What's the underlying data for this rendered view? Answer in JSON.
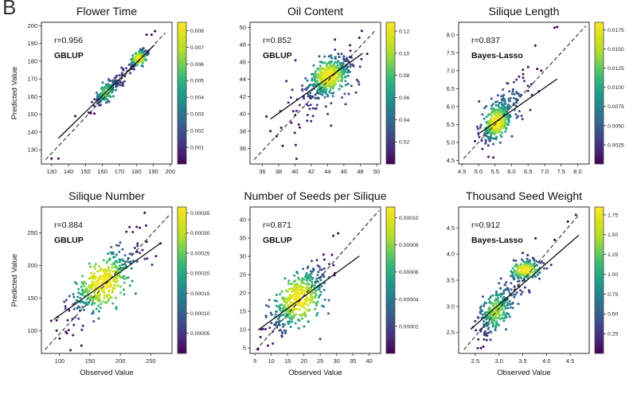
{
  "panel_label": "B",
  "colormap": {
    "name": "viridis",
    "stops": [
      "#440154",
      "#482878",
      "#3e4a89",
      "#31688e",
      "#26828e",
      "#1f9e89",
      "#35b779",
      "#6ece58",
      "#b5de2b",
      "#d8e219",
      "#fde725"
    ]
  },
  "axis_text": {
    "ylabel": "Predicted Value",
    "xlabel": "Observed Value"
  },
  "chart_data": [
    {
      "type": "scatter",
      "title": "Flower Time",
      "annotation": {
        "r": "r=0.956",
        "method": "GBLUP"
      },
      "xlabel": "",
      "ylabel": "Predicted Value",
      "xlim": [
        124,
        201
      ],
      "ylim": [
        122,
        202
      ],
      "xticks": [
        130,
        140,
        150,
        160,
        170,
        180,
        190,
        200
      ],
      "xtick_labels": [
        "130",
        "140",
        "150",
        "160",
        "170",
        "180",
        "190",
        "200"
      ],
      "yticks": [
        130,
        140,
        150,
        160,
        170,
        180,
        190,
        200
      ],
      "ytick_labels": [
        "130",
        "140",
        "150",
        "160",
        "170",
        "180",
        "190",
        "200"
      ],
      "colorbar": {
        "vmin": 0,
        "vmax": 0.0085,
        "tick_values": [
          0.001,
          0.002,
          0.003,
          0.004,
          0.005,
          0.006,
          0.007,
          0.008
        ],
        "tick_labels": [
          "0.001",
          "0.002",
          "0.003",
          "0.004",
          "0.005",
          "0.006",
          "0.007",
          "0.008"
        ]
      },
      "identity_line": [
        126.5,
        124.5,
        197,
        196
      ],
      "fit_line": [
        134,
        136.5,
        190.5,
        189
      ],
      "point_clusters": [
        {
          "cx": 162,
          "cy": 162.5,
          "sx": 3.4,
          "sy": 3.6,
          "rho": 0.72,
          "n": 150
        },
        {
          "cx": 181.5,
          "cy": 181.5,
          "sx": 2.6,
          "sy": 2.4,
          "rho": 0.65,
          "n": 150
        },
        {
          "cx": 171,
          "cy": 171,
          "sx": 5.5,
          "sy": 5.5,
          "rho": 0.85,
          "n": 30
        }
      ],
      "outliers": [
        [
          130,
          125
        ],
        [
          134,
          125
        ],
        [
          144,
          149
        ],
        [
          152,
          151
        ],
        [
          186,
          195
        ],
        [
          189,
          195
        ],
        [
          191,
          197
        ],
        [
          174,
          176
        ],
        [
          172,
          167
        ],
        [
          168,
          171
        ]
      ]
    },
    {
      "type": "scatter",
      "title": "Oil Content",
      "annotation": {
        "r": "r=0.852",
        "method": "GBLUP"
      },
      "xlabel": "",
      "ylabel": "",
      "xlim": [
        34.5,
        50.5
      ],
      "ylim": [
        34.2,
        50.6
      ],
      "xticks": [
        36,
        38,
        40,
        42,
        44,
        46,
        48,
        50
      ],
      "xtick_labels": [
        "36",
        "38",
        "40",
        "42",
        "44",
        "46",
        "48",
        "50"
      ],
      "yticks": [
        36,
        38,
        40,
        42,
        44,
        46,
        48,
        50
      ],
      "ytick_labels": [
        "36",
        "38",
        "40",
        "42",
        "44",
        "46",
        "48",
        "50"
      ],
      "colorbar": {
        "vmin": 0,
        "vmax": 0.128,
        "tick_values": [
          0.02,
          0.04,
          0.06,
          0.08,
          0.1,
          0.12
        ],
        "tick_labels": [
          "0.02",
          "0.04",
          "0.06",
          "0.08",
          "0.10",
          "0.12"
        ]
      },
      "identity_line": [
        35,
        34.7,
        49.8,
        49.6
      ],
      "fit_line": [
        37,
        39.4,
        48.3,
        47.0
      ],
      "point_clusters": [
        {
          "cx": 44.2,
          "cy": 44.4,
          "sx": 1.25,
          "sy": 1.1,
          "rho": 0.55,
          "n": 400
        },
        {
          "cx": 43.2,
          "cy": 42.8,
          "sx": 2.4,
          "sy": 2.2,
          "rho": 0.55,
          "n": 90
        }
      ],
      "outliers": [
        [
          37,
          38
        ],
        [
          38.5,
          36.3
        ],
        [
          40.2,
          34.8
        ],
        [
          40.1,
          36.4
        ],
        [
          41.5,
          39.2
        ],
        [
          48.2,
          49.6
        ],
        [
          47.9,
          48.8
        ],
        [
          44.9,
          48.6
        ],
        [
          46.8,
          47.3
        ],
        [
          39.8,
          40.3
        ]
      ]
    },
    {
      "type": "scatter",
      "title": "Silique Length",
      "annotation": {
        "r": "r=0.837",
        "method": "Bayes-Lasso"
      },
      "xlabel": "",
      "ylabel": "",
      "xlim": [
        4.4,
        8.35
      ],
      "ylim": [
        4.4,
        8.35
      ],
      "xticks": [
        4.5,
        5.0,
        5.5,
        6.0,
        6.5,
        7.0,
        7.5,
        8.0
      ],
      "xtick_labels": [
        "4.5",
        "5.0",
        "5.5",
        "6.0",
        "6.5",
        "7.0",
        "7.5",
        "8.0"
      ],
      "yticks": [
        4.5,
        5.0,
        5.5,
        6.0,
        6.5,
        7.0,
        7.5,
        8.0
      ],
      "ytick_labels": [
        "4.5",
        "5.0",
        "5.5",
        "6.0",
        "6.5",
        "7.0",
        "7.5",
        "8.0"
      ],
      "colorbar": {
        "vmin": 0,
        "vmax": 0.0185,
        "tick_values": [
          0.0025,
          0.005,
          0.0075,
          0.01,
          0.0125,
          0.015,
          0.0175
        ],
        "tick_labels": [
          "0.0025",
          "0.0050",
          "0.0075",
          "0.0100",
          "0.0125",
          "0.0150",
          "0.0175"
        ]
      },
      "identity_line": [
        4.55,
        4.55,
        8.25,
        8.25
      ],
      "fit_line": [
        5.05,
        5.27,
        7.38,
        6.77
      ],
      "point_clusters": [
        {
          "cx": 5.55,
          "cy": 5.55,
          "sx": 0.22,
          "sy": 0.26,
          "rho": 0.55,
          "n": 330
        },
        {
          "cx": 5.95,
          "cy": 6.1,
          "sx": 0.33,
          "sy": 0.38,
          "rho": 0.5,
          "n": 85
        }
      ],
      "outliers": [
        [
          7.3,
          8.2
        ],
        [
          7.38,
          8.22
        ],
        [
          6.72,
          7.7
        ],
        [
          6.5,
          7.1
        ],
        [
          6.9,
          7.0
        ],
        [
          5.3,
          4.6
        ],
        [
          5.45,
          4.58
        ],
        [
          5.12,
          4.82
        ],
        [
          6.35,
          6.9
        ],
        [
          6.15,
          6.75
        ]
      ]
    },
    {
      "type": "scatter",
      "title": "Silique Number",
      "annotation": {
        "r": "r=0.884",
        "method": "GBLUP"
      },
      "xlabel": "Observed Value",
      "ylabel": "Predicted Value",
      "xlim": [
        70,
        285
      ],
      "ylim": [
        65,
        290
      ],
      "xticks": [
        100,
        150,
        200,
        250
      ],
      "xtick_labels": [
        "100",
        "150",
        "200",
        "250"
      ],
      "yticks": [
        100,
        150,
        200,
        250
      ],
      "ytick_labels": [
        "100",
        "150",
        "200",
        "250"
      ],
      "colorbar": {
        "vmin": 0,
        "vmax": 0.000365,
        "tick_values": [
          5e-05,
          0.0001,
          0.00015,
          0.0002,
          0.00025,
          0.0003,
          0.00035
        ],
        "tick_labels": [
          "0.00005",
          "0.00010",
          "0.00015",
          "0.00020",
          "0.00025",
          "0.00030",
          "0.00035"
        ]
      },
      "identity_line": [
        76,
        71,
        281,
        278
      ],
      "fit_line": [
        90,
        117,
        267,
        235
      ],
      "point_clusters": [
        {
          "cx": 172,
          "cy": 174,
          "sx": 27,
          "sy": 27,
          "rho": 0.7,
          "n": 420
        }
      ],
      "outliers": [
        [
          100,
          88
        ],
        [
          112,
          96
        ],
        [
          122,
          93
        ],
        [
          240,
          281
        ],
        [
          266,
          234
        ],
        [
          232,
          258
        ],
        [
          118,
          70
        ],
        [
          136,
          77
        ],
        [
          210,
          252
        ],
        [
          95,
          100
        ]
      ]
    },
    {
      "type": "scatter",
      "title": "Number of Seeds per Silique",
      "annotation": {
        "r": "r=0.871",
        "method": "GBLUP"
      },
      "xlabel": "Observed Value",
      "ylabel": "",
      "xlim": [
        3.5,
        43.5
      ],
      "ylim": [
        3.5,
        43.5
      ],
      "xticks": [
        5,
        10,
        15,
        20,
        25,
        30,
        35,
        40
      ],
      "xtick_labels": [
        "5",
        "10",
        "15",
        "20",
        "25",
        "30",
        "35",
        "40"
      ],
      "yticks": [
        5,
        10,
        15,
        20,
        25,
        30,
        35,
        40
      ],
      "ytick_labels": [
        "5",
        "10",
        "15",
        "20",
        "25",
        "30",
        "35",
        "40"
      ],
      "colorbar": {
        "vmin": 0,
        "vmax": 0.000108,
        "tick_values": [
          2e-05,
          4e-05,
          6e-05,
          8e-05,
          0.0001
        ],
        "tick_labels": [
          "0.00002",
          "0.00004",
          "0.00006",
          "0.00008",
          "0.00010"
        ]
      },
      "identity_line": [
        5.3,
        4.4,
        43,
        42.5
      ],
      "fit_line": [
        6,
        9.9,
        37,
        30.1
      ],
      "point_clusters": [
        {
          "cx": 18.5,
          "cy": 18.3,
          "sx": 4.3,
          "sy": 4.3,
          "rho": 0.62,
          "n": 430
        }
      ],
      "outliers": [
        [
          6,
          4.6
        ],
        [
          30.5,
          36.3
        ],
        [
          29,
          35.6
        ],
        [
          27.5,
          14.4
        ],
        [
          9,
          5.6
        ],
        [
          10.5,
          6.2
        ],
        [
          26,
          30.5
        ],
        [
          24,
          29
        ]
      ]
    },
    {
      "type": "scatter",
      "title": "Thousand Seed Weight",
      "annotation": {
        "r": "r=0.912",
        "method": "Bayes-Lasso"
      },
      "xlabel": "Observed Value",
      "ylabel": "",
      "xlim": [
        2.15,
        4.9
      ],
      "ylim": [
        2.1,
        4.9
      ],
      "xticks": [
        2.5,
        3.0,
        3.5,
        4.0,
        4.5
      ],
      "xtick_labels": [
        "2.5",
        "3.0",
        "3.5",
        "4.0",
        "4.5"
      ],
      "yticks": [
        2.5,
        3.0,
        3.5,
        4.0,
        4.5
      ],
      "ytick_labels": [
        "2.5",
        "3.0",
        "3.5",
        "4.0",
        "4.5"
      ],
      "colorbar": {
        "vmin": 0,
        "vmax": 1.85,
        "tick_values": [
          0.25,
          0.5,
          0.75,
          1.0,
          1.25,
          1.5,
          1.75
        ],
        "tick_labels": [
          "0.25",
          "0.50",
          "0.75",
          "1.00",
          "1.25",
          "1.50",
          "1.75"
        ]
      },
      "identity_line": [
        2.26,
        2.17,
        4.7,
        4.77
      ],
      "fit_line": [
        2.4,
        2.56,
        4.68,
        4.36
      ],
      "point_clusters": [
        {
          "cx": 2.93,
          "cy": 2.9,
          "sx": 0.17,
          "sy": 0.21,
          "rho": 0.55,
          "n": 230
        },
        {
          "cx": 3.55,
          "cy": 3.7,
          "sx": 0.18,
          "sy": 0.09,
          "rho": 0.3,
          "n": 170
        },
        {
          "cx": 3.2,
          "cy": 3.2,
          "sx": 0.28,
          "sy": 0.28,
          "rho": 0.75,
          "n": 60
        }
      ],
      "outliers": [
        [
          2.55,
          2.2
        ],
        [
          2.62,
          2.2
        ],
        [
          2.67,
          2.23
        ],
        [
          2.82,
          2.36
        ],
        [
          4.45,
          4.62
        ],
        [
          4.62,
          4.75
        ],
        [
          4.17,
          4.27
        ],
        [
          3.77,
          4.3
        ],
        [
          3.5,
          4.02
        ],
        [
          2.62,
          3.0
        ],
        [
          3.15,
          2.56
        ],
        [
          2.45,
          2.6
        ]
      ]
    }
  ]
}
